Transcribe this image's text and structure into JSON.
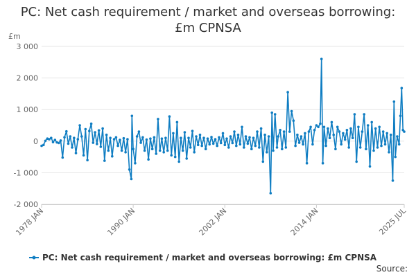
{
  "chart_data": {
    "type": "line",
    "title": "PC: Net cash requirement / market and overseas borrowing: £m CPNSA",
    "unit_label": "£m",
    "xlim": [
      "1978-01",
      "2025-07"
    ],
    "ylim": [
      -2000,
      3000
    ],
    "y_ticks": [
      3000,
      2000,
      1000,
      0,
      -1000,
      -2000
    ],
    "y_tick_labels": [
      "3 000",
      "2 000",
      "1 000",
      "0",
      "-1 000",
      "-2 000"
    ],
    "x_tick_labels": [
      "1978 JAN",
      "1990 JAN",
      "2002 JAN",
      "2014 JAN",
      "2025 JUL"
    ],
    "x_ticks": [
      "1978-01",
      "1990-01",
      "2002-01",
      "2014-01",
      "2025-07"
    ],
    "grid": true,
    "legend_position": "bottom",
    "series_color": "#0f7dc2",
    "series": [
      {
        "name": "PC: Net cash requirement / market and overseas borrowing: £m CPNSA",
        "points": [
          [
            "1978-01",
            -150
          ],
          [
            "1978-04",
            -120
          ],
          [
            "1978-07",
            10
          ],
          [
            "1978-10",
            80
          ],
          [
            "1979-01",
            60
          ],
          [
            "1979-04",
            100
          ],
          [
            "1979-07",
            -30
          ],
          [
            "1979-10",
            40
          ],
          [
            "1980-01",
            -40
          ],
          [
            "1980-04",
            -60
          ],
          [
            "1980-07",
            20
          ],
          [
            "1980-10",
            -520
          ],
          [
            "1981-01",
            120
          ],
          [
            "1981-04",
            310
          ],
          [
            "1981-07",
            -80
          ],
          [
            "1981-10",
            150
          ],
          [
            "1982-01",
            -200
          ],
          [
            "1982-04",
            100
          ],
          [
            "1982-07",
            -380
          ],
          [
            "1982-10",
            60
          ],
          [
            "1983-01",
            500
          ],
          [
            "1983-04",
            150
          ],
          [
            "1983-07",
            -450
          ],
          [
            "1983-10",
            380
          ],
          [
            "1984-01",
            -600
          ],
          [
            "1984-04",
            320
          ],
          [
            "1984-07",
            550
          ],
          [
            "1984-10",
            -50
          ],
          [
            "1985-01",
            280
          ],
          [
            "1985-04",
            -90
          ],
          [
            "1985-07",
            340
          ],
          [
            "1985-10",
            -180
          ],
          [
            "1986-01",
            400
          ],
          [
            "1986-04",
            -620
          ],
          [
            "1986-07",
            200
          ],
          [
            "1986-10",
            -300
          ],
          [
            "1987-01",
            100
          ],
          [
            "1987-04",
            -480
          ],
          [
            "1987-07",
            60
          ],
          [
            "1987-10",
            120
          ],
          [
            "1988-01",
            -150
          ],
          [
            "1988-04",
            40
          ],
          [
            "1988-07",
            -300
          ],
          [
            "1988-10",
            90
          ],
          [
            "1989-01",
            -350
          ],
          [
            "1989-04",
            60
          ],
          [
            "1989-07",
            -900
          ],
          [
            "1989-10",
            -1200
          ],
          [
            "1989-11",
            800
          ],
          [
            "1990-01",
            -250
          ],
          [
            "1990-04",
            -700
          ],
          [
            "1990-07",
            150
          ],
          [
            "1990-10",
            300
          ],
          [
            "1991-01",
            -50
          ],
          [
            "1991-04",
            120
          ],
          [
            "1991-07",
            -300
          ],
          [
            "1991-10",
            50
          ],
          [
            "1992-01",
            -580
          ],
          [
            "1992-04",
            80
          ],
          [
            "1992-07",
            -250
          ],
          [
            "1992-10",
            120
          ],
          [
            "1993-01",
            -400
          ],
          [
            "1993-04",
            700
          ],
          [
            "1993-07",
            -300
          ],
          [
            "1993-10",
            80
          ],
          [
            "1994-01",
            -350
          ],
          [
            "1994-04",
            100
          ],
          [
            "1994-07",
            -300
          ],
          [
            "1994-10",
            780
          ],
          [
            "1995-01",
            -450
          ],
          [
            "1995-04",
            250
          ],
          [
            "1995-07",
            -500
          ],
          [
            "1995-10",
            600
          ],
          [
            "1996-01",
            -650
          ],
          [
            "1996-04",
            100
          ],
          [
            "1996-07",
            -300
          ],
          [
            "1996-10",
            280
          ],
          [
            "1997-01",
            -550
          ],
          [
            "1997-04",
            100
          ],
          [
            "1997-07",
            -200
          ],
          [
            "1997-10",
            320
          ],
          [
            "1998-01",
            -350
          ],
          [
            "1998-04",
            150
          ],
          [
            "1998-07",
            -120
          ],
          [
            "1998-10",
            200
          ],
          [
            "1999-01",
            -150
          ],
          [
            "1999-04",
            100
          ],
          [
            "1999-07",
            -250
          ],
          [
            "1999-10",
            80
          ],
          [
            "2000-01",
            -100
          ],
          [
            "2000-04",
            130
          ],
          [
            "2000-07",
            -80
          ],
          [
            "2000-10",
            60
          ],
          [
            "2001-01",
            -150
          ],
          [
            "2001-04",
            120
          ],
          [
            "2001-07",
            -60
          ],
          [
            "2001-10",
            250
          ],
          [
            "2002-01",
            -120
          ],
          [
            "2002-04",
            80
          ],
          [
            "2002-07",
            -200
          ],
          [
            "2002-10",
            150
          ],
          [
            "2003-01",
            -60
          ],
          [
            "2003-04",
            300
          ],
          [
            "2003-07",
            -150
          ],
          [
            "2003-10",
            200
          ],
          [
            "2004-01",
            -100
          ],
          [
            "2004-04",
            450
          ],
          [
            "2004-07",
            -200
          ],
          [
            "2004-10",
            150
          ],
          [
            "2005-01",
            -80
          ],
          [
            "2005-04",
            120
          ],
          [
            "2005-07",
            -250
          ],
          [
            "2005-10",
            100
          ],
          [
            "2006-01",
            -150
          ],
          [
            "2006-04",
            300
          ],
          [
            "2006-07",
            -200
          ],
          [
            "2006-10",
            400
          ],
          [
            "2007-01",
            -650
          ],
          [
            "2007-04",
            200
          ],
          [
            "2007-07",
            -350
          ],
          [
            "2007-10",
            150
          ],
          [
            "2008-01",
            -1650
          ],
          [
            "2008-03",
            900
          ],
          [
            "2008-05",
            -300
          ],
          [
            "2008-08",
            850
          ],
          [
            "2008-11",
            -200
          ],
          [
            "2009-01",
            150
          ],
          [
            "2009-04",
            350
          ],
          [
            "2009-07",
            -250
          ],
          [
            "2009-10",
            300
          ],
          [
            "2010-01",
            -200
          ],
          [
            "2010-04",
            1550
          ],
          [
            "2010-07",
            300
          ],
          [
            "2010-10",
            950
          ],
          [
            "2011-01",
            650
          ],
          [
            "2011-04",
            -150
          ],
          [
            "2011-07",
            200
          ],
          [
            "2011-10",
            -50
          ],
          [
            "2012-01",
            150
          ],
          [
            "2012-04",
            -100
          ],
          [
            "2012-07",
            250
          ],
          [
            "2012-10",
            -700
          ],
          [
            "2013-01",
            300
          ],
          [
            "2013-04",
            450
          ],
          [
            "2013-07",
            -100
          ],
          [
            "2013-10",
            350
          ],
          [
            "2014-01",
            500
          ],
          [
            "2014-04",
            450
          ],
          [
            "2014-07",
            550
          ],
          [
            "2014-09",
            2600
          ],
          [
            "2014-11",
            -700
          ],
          [
            "2015-01",
            450
          ],
          [
            "2015-04",
            -150
          ],
          [
            "2015-07",
            400
          ],
          [
            "2015-10",
            100
          ],
          [
            "2016-01",
            600
          ],
          [
            "2016-04",
            200
          ],
          [
            "2016-07",
            -250
          ],
          [
            "2016-10",
            450
          ],
          [
            "2017-01",
            300
          ],
          [
            "2017-04",
            -100
          ],
          [
            "2017-07",
            250
          ],
          [
            "2017-10",
            50
          ],
          [
            "2018-01",
            350
          ],
          [
            "2018-04",
            -200
          ],
          [
            "2018-07",
            400
          ],
          [
            "2018-10",
            100
          ],
          [
            "2019-01",
            850
          ],
          [
            "2019-04",
            -650
          ],
          [
            "2019-07",
            450
          ],
          [
            "2019-10",
            -200
          ],
          [
            "2020-01",
            300
          ],
          [
            "2020-04",
            850
          ],
          [
            "2020-07",
            -250
          ],
          [
            "2020-10",
            500
          ],
          [
            "2021-01",
            -800
          ],
          [
            "2021-04",
            600
          ],
          [
            "2021-07",
            -300
          ],
          [
            "2021-10",
            400
          ],
          [
            "2022-01",
            -200
          ],
          [
            "2022-04",
            450
          ],
          [
            "2022-07",
            -150
          ],
          [
            "2022-10",
            300
          ],
          [
            "2023-01",
            -100
          ],
          [
            "2023-04",
            250
          ],
          [
            "2023-07",
            -350
          ],
          [
            "2023-10",
            200
          ],
          [
            "2024-01",
            -1250
          ],
          [
            "2024-03",
            1250
          ],
          [
            "2024-05",
            -500
          ],
          [
            "2024-08",
            150
          ],
          [
            "2024-11",
            -100
          ],
          [
            "2025-01",
            800
          ],
          [
            "2025-03",
            1680
          ],
          [
            "2025-05",
            350
          ],
          [
            "2025-07",
            300
          ]
        ]
      }
    ]
  },
  "source_label": "Source:"
}
